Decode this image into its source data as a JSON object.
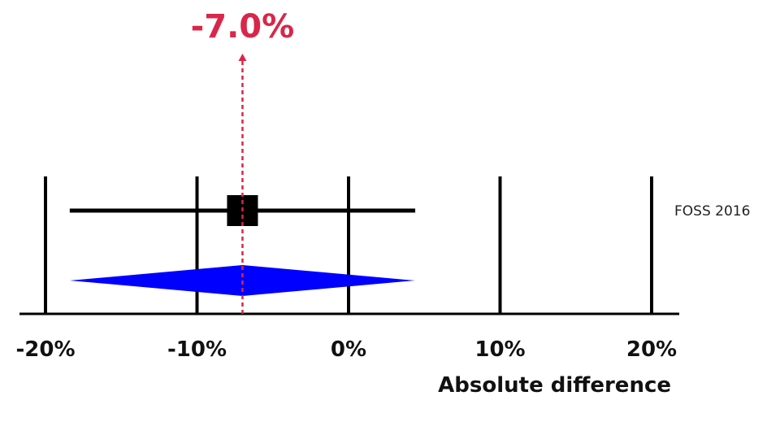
{
  "chart_data": {
    "type": "forest",
    "title": "",
    "xlabel": "Absolute difference",
    "ylabel": "",
    "xlim": [
      -20,
      20
    ],
    "x_ticks": [
      -20,
      -10,
      0,
      10,
      20
    ],
    "x_tick_labels": [
      "-20%",
      "-10%",
      "0%",
      "10%",
      "20%"
    ],
    "grid": "vertical",
    "studies": [
      {
        "name": "FOSS 2016",
        "estimate": -7.0,
        "ci_low": -18.4,
        "ci_high": 4.4
      }
    ],
    "pooled": {
      "estimate": -7.0,
      "ci_low": -18.4,
      "ci_high": 4.4,
      "label": "-7.0%"
    },
    "colors": {
      "pooled_diamond": "#0000ff",
      "pooled_marker": "#d9264a",
      "lines": "#000000",
      "study_box": "#000000"
    }
  }
}
